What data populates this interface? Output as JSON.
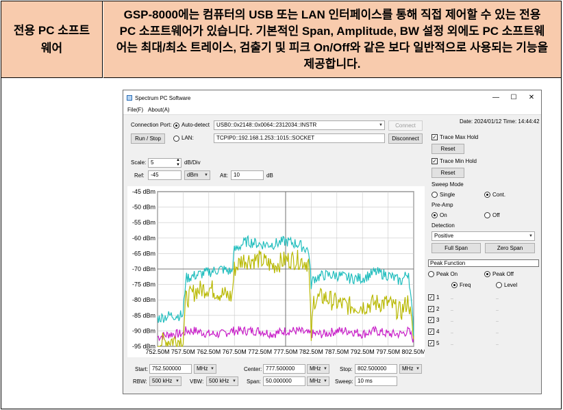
{
  "header": {
    "label": "전용 PC 소프트웨어",
    "description": "GSP-8000에는 컴퓨터의 USB 또는 LAN 인터페이스를 통해 직접 제어할 수 있는 전용 PC 소프트웨어가 있습니다. 기본적인 Span, Amplitude, BW 설정 외에도 PC 소프트웨어는 최대/최소 트레이스, 검출기 및 피크 On/Off와 같은 보다 일반적으로 사용되는 기능을 제공합니다."
  },
  "window": {
    "title": "Spectrum PC Software",
    "minimize": "—",
    "maximize": "☐",
    "close": "✕"
  },
  "menu": {
    "file": "File(F)",
    "about": "About(A)"
  },
  "connection": {
    "port_label": "Connection Port:",
    "autodetect_label": "Auto-detect",
    "usb_value": "USB0::0x2148::0x0064::2312034::INSTR",
    "connect_label": "Connect",
    "run_stop_label": "Run / Stop",
    "lan_label": "LAN:",
    "lan_value": "TCPIP0::192.168.1.253::1015::SOCKET",
    "disconnect_label": "Disconnect",
    "autodetect_selected": true
  },
  "datetime": "Date: 2024/01/12 Time: 14:44:42",
  "scale": {
    "label": "Scale:",
    "value": "5",
    "unit": "dB/Div",
    "ref_label": "Ref:",
    "ref_value": "-45",
    "ref_unit": "dBm",
    "att_label": "Att:",
    "att_value": "10",
    "att_unit": "dB"
  },
  "right_panel": {
    "trace_max_label": "Trace Max Hold",
    "trace_max_checked": true,
    "reset1": "Reset",
    "trace_min_label": "Trace Min Hold",
    "trace_min_checked": true,
    "reset2": "Reset",
    "sweep_mode_label": "Sweep Mode",
    "single_label": "Single",
    "cont_label": "Cont.",
    "sweep_mode_selected": "Cont.",
    "preamp_label": "Pre-Amp",
    "on_label": "On",
    "off_label": "Off",
    "preamp_selected": "On",
    "detection_label": "Detection",
    "detection_value": "Positive",
    "full_span_label": "Full Span",
    "zero_span_label": "Zero Span",
    "peak_function_label": "Peak Function",
    "peak_on_label": "Peak On",
    "peak_off_label": "Peak Off",
    "peak_selected": "Peak Off",
    "freq_label": "Freq",
    "level_label": "Level",
    "peak_type_selected": "Freq",
    "peaks": [
      {
        "num": "1",
        "freq": "..",
        "level": ".."
      },
      {
        "num": "2",
        "freq": "..",
        "level": ".."
      },
      {
        "num": "3",
        "freq": "..",
        "level": ".."
      },
      {
        "num": "4",
        "freq": "..",
        "level": ".."
      },
      {
        "num": "5",
        "freq": "..",
        "level": ".."
      }
    ]
  },
  "bottom": {
    "start_label": "Start:",
    "start_value": "752.500000",
    "start_unit": "MHz",
    "center_label": "Center:",
    "center_value": "777.500000",
    "center_unit": "MHz",
    "stop_label": "Stop:",
    "stop_value": "802.500000",
    "stop_unit": "MHz",
    "rbw_label": "RBW:",
    "rbw_value": "500 kHz",
    "vbw_label": "VBW:",
    "vbw_value": "500 kHz",
    "span_label": "Span:",
    "span_value": "50.000000",
    "span_unit": "MHz",
    "sweep_label": "Sweep:",
    "sweep_value": "10 ms"
  },
  "chart_data": {
    "type": "line",
    "xlabel": "",
    "ylabel": "",
    "xlim": [
      752.5,
      802.5
    ],
    "ylim": [
      -95,
      -45
    ],
    "y_ticks": [
      "-45 dBm",
      "-50 dBm",
      "-55 dBm",
      "-60 dBm",
      "-65 dBm",
      "-70 dBm",
      "-75 dBm",
      "-80 dBm",
      "-85 dBm",
      "-90 dBm",
      "-95 dBm"
    ],
    "x_ticks": [
      "752.50M",
      "757.50M",
      "762.50M",
      "767.50M",
      "772.50M",
      "777.50M",
      "782.50M",
      "787.50M",
      "792.50M",
      "797.50M",
      "802.50M"
    ],
    "colors": {
      "max": "#c81ec8",
      "live": "#b8b800",
      "min": "#1fbdbd",
      "grid": "#c8c8c8"
    },
    "x": [
      752.5,
      755.0,
      757.5,
      758.0,
      760.0,
      762.5,
      765.0,
      767.0,
      767.5,
      769.0,
      770.0,
      772.5,
      775.0,
      777.5,
      780.0,
      782.0,
      782.5,
      783.0,
      785.0,
      787.5,
      790.0,
      792.5,
      795.0,
      797.5,
      800.0,
      801.5,
      802.5
    ],
    "series": [
      {
        "name": "",
        "values": [
          -86,
          -85,
          -85,
          -73,
          -72,
          -71,
          -70,
          -71,
          -64,
          -62,
          -61,
          -62,
          -62,
          -61,
          -62,
          -64,
          -75,
          -73,
          -72,
          -72,
          -73,
          -73,
          -71,
          -72,
          -74,
          -71,
          -90
        ]
      },
      {
        "name": "",
        "values": [
          -94,
          -93,
          -93,
          -80,
          -77,
          -76,
          -78,
          -79,
          -70,
          -67,
          -67,
          -67,
          -69,
          -67,
          -67,
          -68,
          -92,
          -80,
          -79,
          -81,
          -82,
          -82,
          -81,
          -81,
          -84,
          -80,
          -93
        ]
      },
      {
        "name": "",
        "values": [
          -92,
          -91,
          -91,
          -90,
          -90,
          -91,
          -91,
          -90,
          -90,
          -90,
          -90,
          -90,
          -91,
          -90,
          -90,
          -91,
          -91,
          -91,
          -91,
          -90,
          -90,
          -91,
          -90,
          -91,
          -91,
          -90,
          -93
        ]
      }
    ]
  }
}
